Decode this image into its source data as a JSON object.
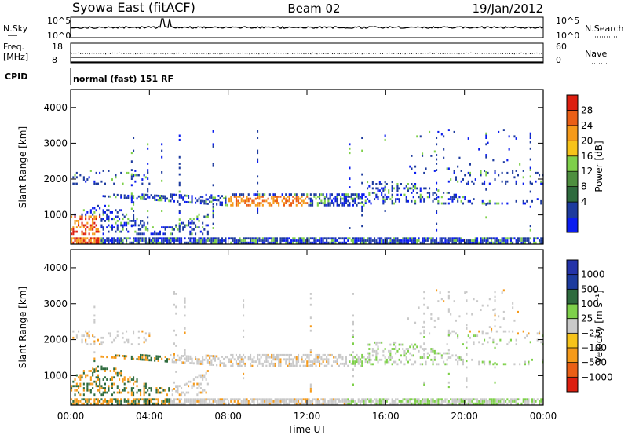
{
  "header": {
    "station": "Syowa East (fitACF)",
    "beam": "Beam 02",
    "date": "19/Jan/2012"
  },
  "panels": {
    "nsky": {
      "left_label": "N.Sky",
      "right_label": "N.Search",
      "ticks": [
        "10^5",
        "10^0"
      ]
    },
    "freq": {
      "left_label_1": "Freq.",
      "left_label_2": "[MHz]",
      "right_label": "Nave",
      "left_ticks": [
        "18",
        "8"
      ],
      "right_ticks": [
        "60",
        "0"
      ]
    },
    "cpid": {
      "label": "CPID",
      "value": "normal (fast) 151 RF"
    }
  },
  "colors": {
    "power": [
      "#0a1cf0",
      "#1d3b9e",
      "#2e6b3e",
      "#4e8f3f",
      "#7ed04a",
      "#f6c31a",
      "#f59a1a",
      "#ea5f16",
      "#dd1f10"
    ],
    "velocity": [
      "#dd1f10",
      "#ea5f16",
      "#f59a1a",
      "#f6c31a",
      "#c9c9c9",
      "#7ed04a",
      "#2e6b3e",
      "#1d3b9e",
      "#2433a8"
    ]
  },
  "chart_data": [
    {
      "type": "heatmap",
      "name": "power",
      "ylabel": "Slant Range [km]",
      "colorbar_label": "Power [dB]",
      "colorbar_ticks": [
        "28",
        "24",
        "20",
        "16",
        "12",
        "8",
        "4"
      ],
      "y_ticks": [
        "4000",
        "3000",
        "2000",
        "1000"
      ],
      "ylim": [
        180,
        4500
      ]
    },
    {
      "type": "heatmap",
      "name": "velocity",
      "ylabel": "Slant Range [km]",
      "colorbar_label": "Velocity [m s⁻¹]",
      "colorbar_ticks": [
        "1000",
        "500",
        "100",
        "25",
        "−25",
        "−100",
        "−500",
        "−1000"
      ],
      "y_ticks": [
        "4000",
        "3000",
        "2000",
        "1000"
      ],
      "ylim": [
        180,
        4500
      ]
    }
  ],
  "x_axis": {
    "label": "Time UT",
    "ticks": [
      "00:00",
      "04:00",
      "08:00",
      "12:00",
      "16:00",
      "20:00",
      "00:00"
    ]
  }
}
